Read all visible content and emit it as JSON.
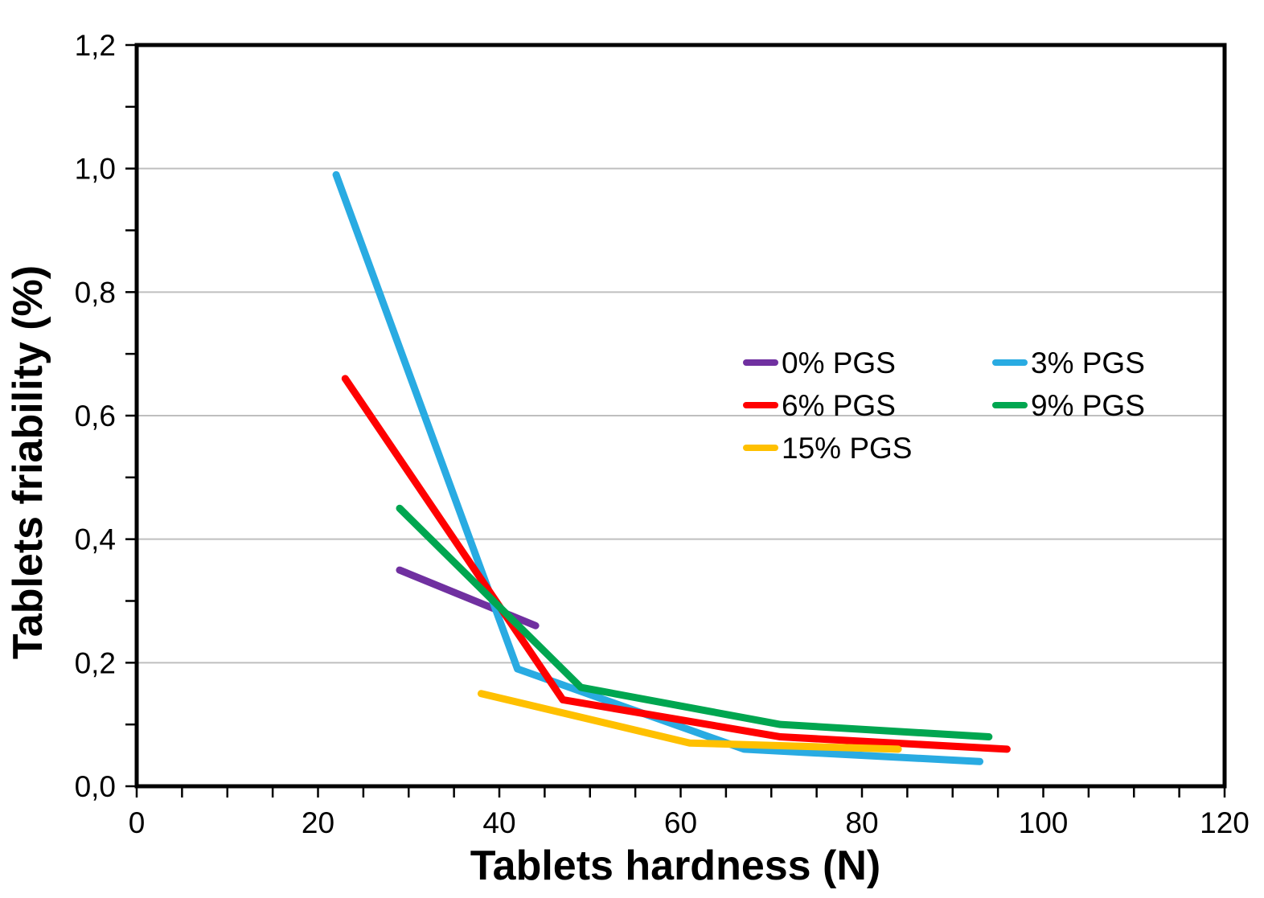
{
  "chart_data": {
    "type": "line",
    "title": "",
    "xlabel": "Tablets hardness (N)",
    "ylabel": "Tablets friability (%)",
    "xlim": [
      0,
      120
    ],
    "ylim": [
      0,
      1.2
    ],
    "x_ticks": [
      0,
      20,
      40,
      60,
      80,
      100,
      120
    ],
    "x_tick_labels": [
      "0",
      "20",
      "40",
      "60",
      "80",
      "100",
      "120"
    ],
    "x_minor_tick_step": 5,
    "y_ticks": [
      0,
      0.2,
      0.4,
      0.6,
      0.8,
      1.0,
      1.2
    ],
    "y_tick_labels": [
      "0,0",
      "0,2",
      "0,4",
      "0,6",
      "0,8",
      "1,0",
      "1,2"
    ],
    "y_minor_tick_step": 0.1,
    "grid": "horizontal-major-only",
    "gridline_color": "#BFBFBF",
    "axis_color": "#000000",
    "background": "#FFFFFF",
    "legend_position": "inside-upper-right",
    "legend_columns": 2,
    "series": [
      {
        "name": "0% PGS",
        "color": "#7030A0",
        "points": [
          [
            29,
            0.35
          ],
          [
            44,
            0.26
          ]
        ]
      },
      {
        "name": "3% PGS",
        "color": "#29ABE2",
        "points": [
          [
            22,
            0.99
          ],
          [
            42,
            0.19
          ],
          [
            67,
            0.06
          ],
          [
            93,
            0.04
          ]
        ]
      },
      {
        "name": "6% PGS",
        "color": "#FF0000",
        "points": [
          [
            23,
            0.66
          ],
          [
            47,
            0.14
          ],
          [
            71,
            0.08
          ],
          [
            96,
            0.06
          ]
        ]
      },
      {
        "name": "9% PGS",
        "color": "#00A650",
        "points": [
          [
            29,
            0.45
          ],
          [
            49,
            0.16
          ],
          [
            71,
            0.1
          ],
          [
            94,
            0.08
          ]
        ]
      },
      {
        "name": "15% PGS",
        "color": "#FFC000",
        "points": [
          [
            38,
            0.15
          ],
          [
            61,
            0.07
          ],
          [
            84,
            0.06
          ]
        ]
      }
    ]
  }
}
